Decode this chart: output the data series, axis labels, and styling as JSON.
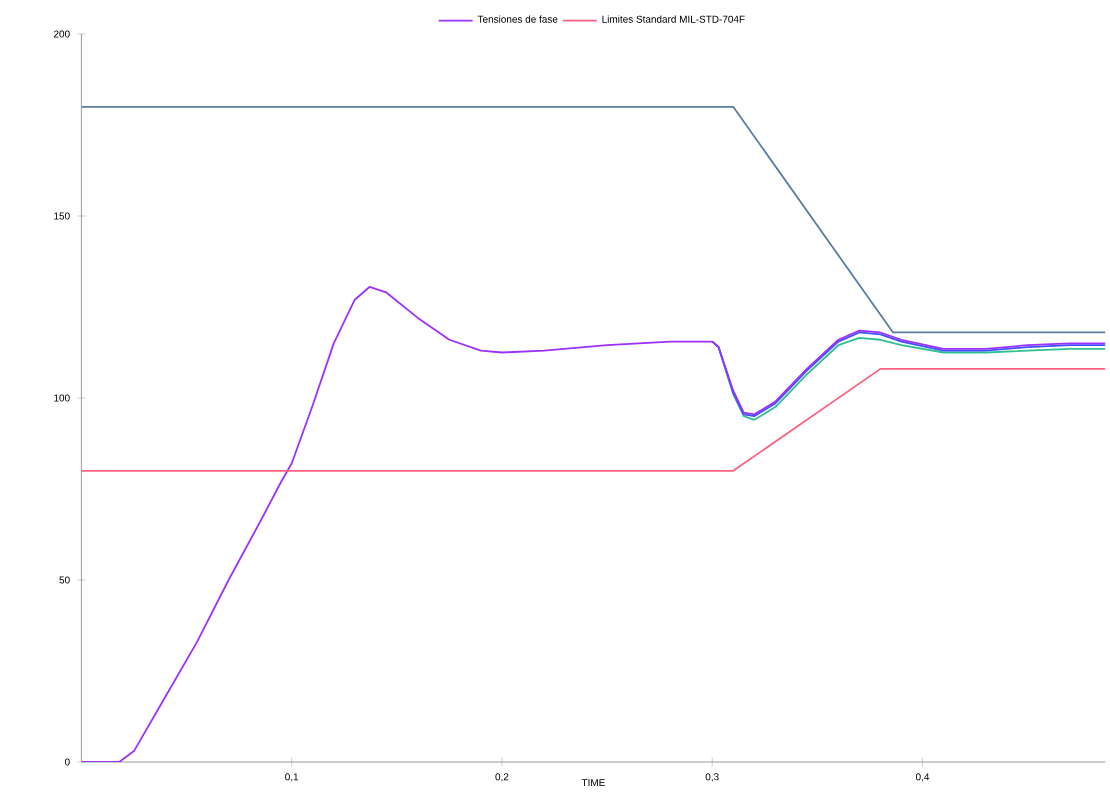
{
  "chart_data": {
    "type": "line",
    "xlabel": "TIME",
    "xlim": [
      0,
      0.487
    ],
    "ylim": [
      0,
      200
    ],
    "xticks": [
      {
        "value": 0.1,
        "label": "0,1"
      },
      {
        "value": 0.2,
        "label": "0,2"
      },
      {
        "value": 0.3,
        "label": "0,3"
      },
      {
        "value": 0.4,
        "label": "0,4"
      }
    ],
    "yticks": [
      0,
      50,
      100,
      150,
      200
    ],
    "legend": "top",
    "grid": false,
    "marker": "none",
    "line_style": "solid",
    "series": [
      {
        "color": "#30c090",
        "x": [
          0.3,
          0.303,
          0.31,
          0.315,
          0.32,
          0.33,
          0.345,
          0.36,
          0.37,
          0.38,
          0.39,
          0.41,
          0.43,
          0.45,
          0.47,
          0.487
        ],
        "values": [
          115.5,
          114,
          101,
          95,
          94,
          97.5,
          106.5,
          114.5,
          116.5,
          116,
          114.5,
          112.5,
          112.5,
          113,
          113.5,
          113.5
        ]
      },
      {
        "color": "#4050ff",
        "x": [
          0.3,
          0.303,
          0.31,
          0.315,
          0.32,
          0.33,
          0.345,
          0.36,
          0.37,
          0.38,
          0.39,
          0.41,
          0.43,
          0.45,
          0.47,
          0.487
        ],
        "values": [
          115.5,
          114,
          101.5,
          95.5,
          95,
          98.5,
          107.5,
          115.5,
          118,
          117.5,
          115.5,
          113,
          113,
          114,
          114.5,
          114.5
        ]
      },
      {
        "name": "Tensiones de fase",
        "color": "#9b30ff",
        "x": [
          0,
          0.018,
          0.025,
          0.04,
          0.055,
          0.07,
          0.085,
          0.095,
          0.1,
          0.11,
          0.12,
          0.13,
          0.137,
          0.145,
          0.16,
          0.175,
          0.19,
          0.2,
          0.22,
          0.25,
          0.28,
          0.3,
          0.303,
          0.31,
          0.315,
          0.32,
          0.33,
          0.345,
          0.36,
          0.37,
          0.38,
          0.39,
          0.41,
          0.43,
          0.45,
          0.47,
          0.487
        ],
        "values": [
          0,
          0,
          3,
          18,
          33,
          50,
          66,
          77,
          82,
          98,
          115,
          127,
          130.5,
          129,
          122,
          116,
          113,
          112.5,
          113,
          114.5,
          115.5,
          115.5,
          114,
          102,
          96,
          95.5,
          99,
          108,
          116,
          118.5,
          118,
          116,
          113.5,
          113.5,
          114.5,
          115,
          115
        ]
      },
      {
        "name": "Limites Standard MIL-STD-704F",
        "color": "#ff6080",
        "x": [
          0,
          0.31,
          0.38,
          0.487
        ],
        "values": [
          80,
          80,
          108,
          108
        ]
      },
      {
        "color": "#5a7ca0",
        "x": [
          0,
          0.31,
          0.386,
          0.487
        ],
        "values": [
          180,
          180,
          118,
          118
        ]
      }
    ]
  }
}
